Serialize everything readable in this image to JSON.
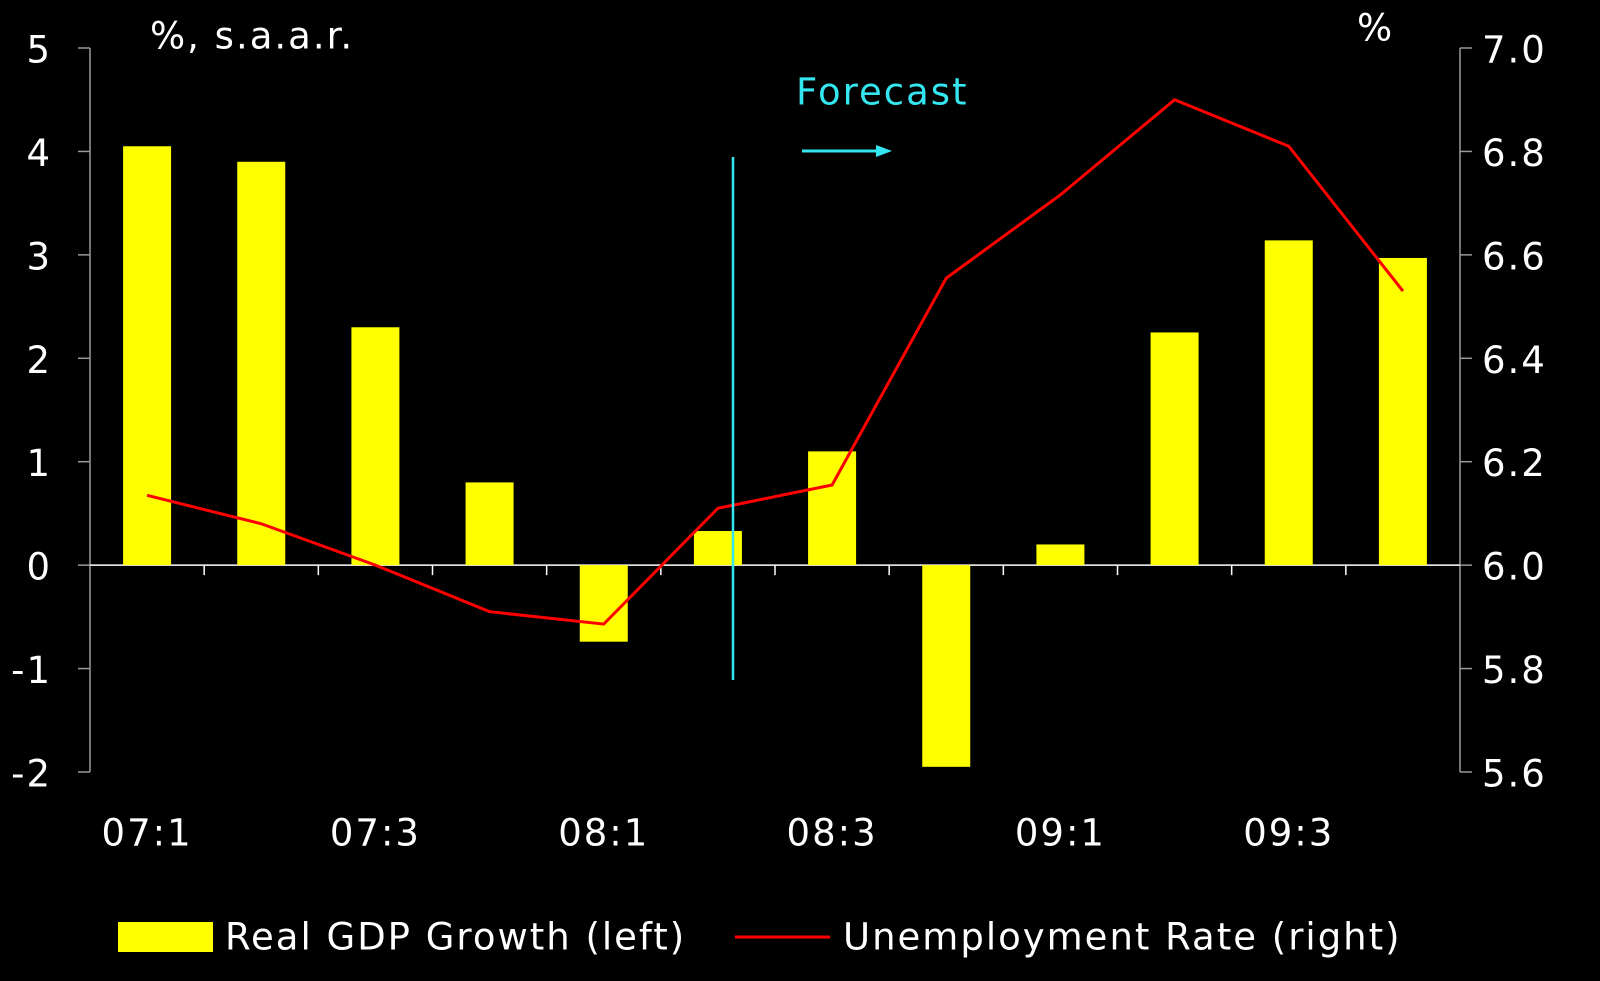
{
  "chart_data": {
    "type": "bar",
    "y_label": "%, s.a.a.r.",
    "y2_label": "%",
    "annotation": "Forecast",
    "categories": [
      "07:1",
      null,
      "07:3",
      null,
      "08:1",
      null,
      "08:3",
      null,
      "09:1",
      null,
      "09:3",
      null
    ],
    "series": [
      {
        "name": "Real GDP Growth (left)",
        "type": "bar",
        "color": "#ffff00",
        "values": [
          4.05,
          3.9,
          2.3,
          0.8,
          -0.74,
          0.33,
          1.1,
          -1.95,
          0.2,
          2.25,
          3.14,
          2.97
        ]
      },
      {
        "name": "Unemployment Rate (right)",
        "type": "line",
        "axis": "y2",
        "color": "#ff0000",
        "values": [
          6.135,
          6.08,
          6.0,
          5.91,
          5.886,
          6.11,
          6.155,
          6.555,
          6.716,
          6.9,
          6.81,
          6.53
        ]
      }
    ],
    "ylim": [
      -2,
      5
    ],
    "yticks": [
      -2,
      -1,
      0,
      1,
      2,
      3,
      4,
      5
    ],
    "y2lim": [
      5.6,
      7.0
    ],
    "y2ticks": [
      5.6,
      5.8,
      {
        "value": 6.0,
        "label": "6.0"
      },
      6.2,
      6.4,
      6.6,
      6.8,
      {
        "value": 7.0,
        "label": "7.0"
      }
    ],
    "annotation_color": "#33e6f0"
  }
}
